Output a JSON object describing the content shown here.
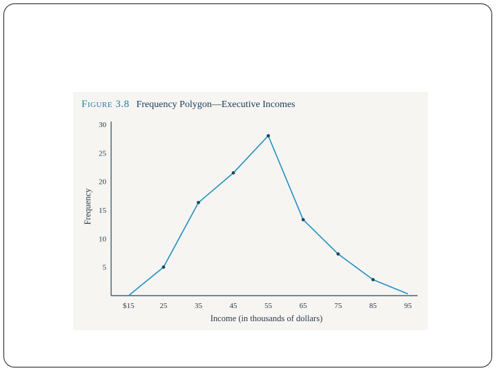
{
  "figure": {
    "number": "Figure 3.8",
    "title": "Frequency Polygon—Executive Incomes"
  },
  "colors": {
    "line": "#1f8fbf",
    "axis": "#24465c",
    "text": "#2a3a46",
    "panel": "#f6f5f2"
  },
  "chart_data": {
    "type": "line",
    "title": "Frequency Polygon—Executive Incomes",
    "xlabel": "Income (in thousands of dollars)",
    "ylabel": "Frequency",
    "x_tick_labels": [
      "$15",
      "25",
      "35",
      "45",
      "55",
      "65",
      "75",
      "85",
      "95"
    ],
    "y_tick_labels": [
      "5",
      "10",
      "15",
      "20",
      "25",
      "30"
    ],
    "y_ticks": [
      5,
      10,
      15,
      20,
      25,
      30
    ],
    "xlim": [
      10,
      95
    ],
    "ylim": [
      0,
      30
    ],
    "grid": false,
    "series": [
      {
        "x": [
          15,
          25,
          35,
          45,
          55,
          65,
          75,
          85,
          95
        ],
        "y": [
          0,
          5,
          16.3,
          21.5,
          28,
          13.3,
          7.3,
          2.8,
          0.3
        ]
      }
    ]
  }
}
